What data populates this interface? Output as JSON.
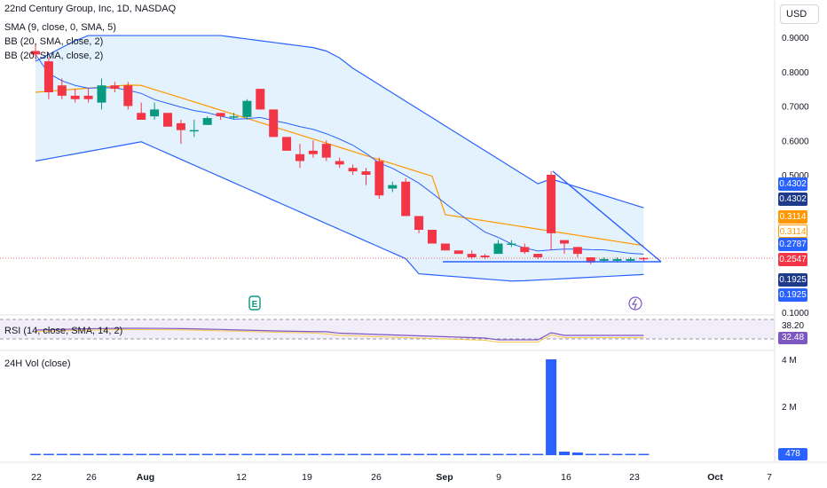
{
  "legend": {
    "title": "22nd Century Group, Inc, 1D, NASDAQ",
    "sma": "SMA (9, close, 0, SMA, 5)",
    "bb1": "BB (20, SMA, close, 2)",
    "bb2": "BB (20, SMA, close, 2)",
    "rsi": "RSI (14, close, SMA, 14, 2)",
    "vol": "24H Vol (close)"
  },
  "currency": "USD",
  "chart_data": {
    "type": "candlestick",
    "price_axis": {
      "ticks": [
        "0.9000",
        "0.8000",
        "0.7000",
        "0.6000",
        "0.5000",
        "0.1000"
      ]
    },
    "time_axis": [
      "22",
      "26",
      "Aug",
      "12",
      "19",
      "26",
      "Sep",
      "9",
      "16",
      "23",
      "Oct",
      "7"
    ],
    "candles": [
      {
        "o": 0.86,
        "h": 0.88,
        "l": 0.84,
        "c": 0.85
      },
      {
        "o": 0.83,
        "h": 0.84,
        "l": 0.72,
        "c": 0.74
      },
      {
        "o": 0.76,
        "h": 0.78,
        "l": 0.72,
        "c": 0.73
      },
      {
        "o": 0.73,
        "h": 0.75,
        "l": 0.71,
        "c": 0.72
      },
      {
        "o": 0.73,
        "h": 0.75,
        "l": 0.71,
        "c": 0.72
      },
      {
        "o": 0.71,
        "h": 0.78,
        "l": 0.69,
        "c": 0.76
      },
      {
        "o": 0.76,
        "h": 0.77,
        "l": 0.74,
        "c": 0.75
      },
      {
        "o": 0.76,
        "h": 0.77,
        "l": 0.69,
        "c": 0.7
      },
      {
        "o": 0.68,
        "h": 0.71,
        "l": 0.66,
        "c": 0.66
      },
      {
        "o": 0.67,
        "h": 0.71,
        "l": 0.66,
        "c": 0.69
      },
      {
        "o": 0.68,
        "h": 0.68,
        "l": 0.64,
        "c": 0.64
      },
      {
        "o": 0.65,
        "h": 0.66,
        "l": 0.59,
        "c": 0.63
      },
      {
        "o": 0.63,
        "h": 0.66,
        "l": 0.61,
        "c": 0.63
      },
      {
        "o": 0.645,
        "h": 0.67,
        "l": 0.645,
        "c": 0.665
      },
      {
        "o": 0.68,
        "h": 0.68,
        "l": 0.66,
        "c": 0.67
      },
      {
        "o": 0.67,
        "h": 0.68,
        "l": 0.66,
        "c": 0.67
      },
      {
        "o": 0.668,
        "h": 0.72,
        "l": 0.66,
        "c": 0.715
      },
      {
        "o": 0.75,
        "h": 0.75,
        "l": 0.69,
        "c": 0.69
      },
      {
        "o": 0.69,
        "h": 0.69,
        "l": 0.61,
        "c": 0.61
      },
      {
        "o": 0.61,
        "h": 0.61,
        "l": 0.57,
        "c": 0.57
      },
      {
        "o": 0.56,
        "h": 0.59,
        "l": 0.52,
        "c": 0.54
      },
      {
        "o": 0.57,
        "h": 0.6,
        "l": 0.55,
        "c": 0.56
      },
      {
        "o": 0.59,
        "h": 0.6,
        "l": 0.54,
        "c": 0.55
      },
      {
        "o": 0.54,
        "h": 0.55,
        "l": 0.52,
        "c": 0.53
      },
      {
        "o": 0.52,
        "h": 0.53,
        "l": 0.5,
        "c": 0.51
      },
      {
        "o": 0.51,
        "h": 0.52,
        "l": 0.47,
        "c": 0.5
      },
      {
        "o": 0.54,
        "h": 0.55,
        "l": 0.43,
        "c": 0.44
      },
      {
        "o": 0.46,
        "h": 0.48,
        "l": 0.45,
        "c": 0.47
      },
      {
        "o": 0.48,
        "h": 0.49,
        "l": 0.38,
        "c": 0.38
      },
      {
        "o": 0.38,
        "h": 0.38,
        "l": 0.33,
        "c": 0.34
      },
      {
        "o": 0.34,
        "h": 0.34,
        "l": 0.3,
        "c": 0.3
      },
      {
        "o": 0.3,
        "h": 0.3,
        "l": 0.28,
        "c": 0.28
      },
      {
        "o": 0.28,
        "h": 0.28,
        "l": 0.27,
        "c": 0.27
      },
      {
        "o": 0.27,
        "h": 0.28,
        "l": 0.255,
        "c": 0.26
      },
      {
        "o": 0.265,
        "h": 0.27,
        "l": 0.255,
        "c": 0.26
      },
      {
        "o": 0.27,
        "h": 0.31,
        "l": 0.27,
        "c": 0.3
      },
      {
        "o": 0.3,
        "h": 0.31,
        "l": 0.29,
        "c": 0.3
      },
      {
        "o": 0.29,
        "h": 0.3,
        "l": 0.27,
        "c": 0.275
      },
      {
        "o": 0.27,
        "h": 0.27,
        "l": 0.255,
        "c": 0.26
      },
      {
        "o": 0.5,
        "h": 0.51,
        "l": 0.28,
        "c": 0.33
      },
      {
        "o": 0.31,
        "h": 0.31,
        "l": 0.27,
        "c": 0.3
      },
      {
        "o": 0.29,
        "h": 0.29,
        "l": 0.26,
        "c": 0.27
      },
      {
        "o": 0.26,
        "h": 0.26,
        "l": 0.24,
        "c": 0.245
      },
      {
        "o": 0.25,
        "h": 0.26,
        "l": 0.245,
        "c": 0.255
      },
      {
        "o": 0.25,
        "h": 0.26,
        "l": 0.245,
        "c": 0.255
      },
      {
        "o": 0.25,
        "h": 0.26,
        "l": 0.245,
        "c": 0.255
      },
      {
        "o": 0.258,
        "h": 0.26,
        "l": 0.248,
        "c": 0.2547
      }
    ],
    "price_labels": [
      {
        "text": "0.4302",
        "kind": "bb"
      },
      {
        "text": "0.4302",
        "kind": "bbdark"
      },
      {
        "text": "0.3114",
        "kind": "mid"
      },
      {
        "text": "0.3114",
        "kind": "mid"
      },
      {
        "text": "0.2787",
        "kind": "bb"
      },
      {
        "text": "0.2547",
        "kind": "last"
      },
      {
        "text": "0.1925",
        "kind": "bbdark"
      },
      {
        "text": "0.1925",
        "kind": "bb"
      }
    ],
    "rsi": {
      "level_label": "38.20",
      "value_label": "32.48"
    },
    "volume": {
      "axis_ticks": [
        "4 M",
        "2 M"
      ],
      "last_label": "478",
      "spike_value": 4000000
    },
    "event_markers": [
      "E"
    ]
  }
}
